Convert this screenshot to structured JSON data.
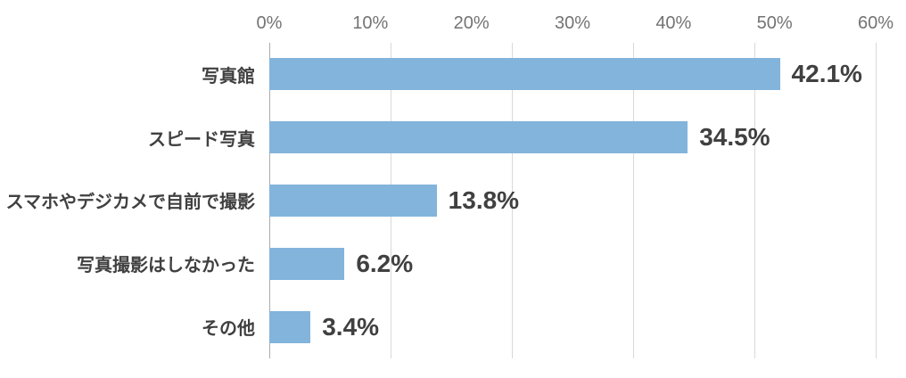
{
  "chart_data": {
    "type": "bar",
    "orientation": "horizontal",
    "title": "",
    "categories": [
      "写真館",
      "スピード写真",
      "スマホやデジカメで自前で撮影",
      "写真撮影はしなかった",
      "その他"
    ],
    "values": [
      42.1,
      34.5,
      13.8,
      6.2,
      3.4
    ],
    "value_labels": [
      "42.1%",
      "34.5%",
      "13.8%",
      "6.2%",
      "3.4%"
    ],
    "x_axis": {
      "position": "top",
      "tick_labels": [
        "0%",
        "10%",
        "20%",
        "30%",
        "40%",
        "50%",
        "60%"
      ],
      "labeled_range": [
        0,
        60
      ],
      "gridline_interval_percent": 10,
      "bar_render_max_percent": 50,
      "gridlines": true
    },
    "legend": false,
    "colors": {
      "bar": "#82B4DC",
      "category_label": "#404040",
      "value_label": "#404040",
      "tick_label": "#737373",
      "gridline": "#D9D9D9",
      "axis_line": "#ABABAB",
      "background": "#FFFFFF"
    }
  }
}
